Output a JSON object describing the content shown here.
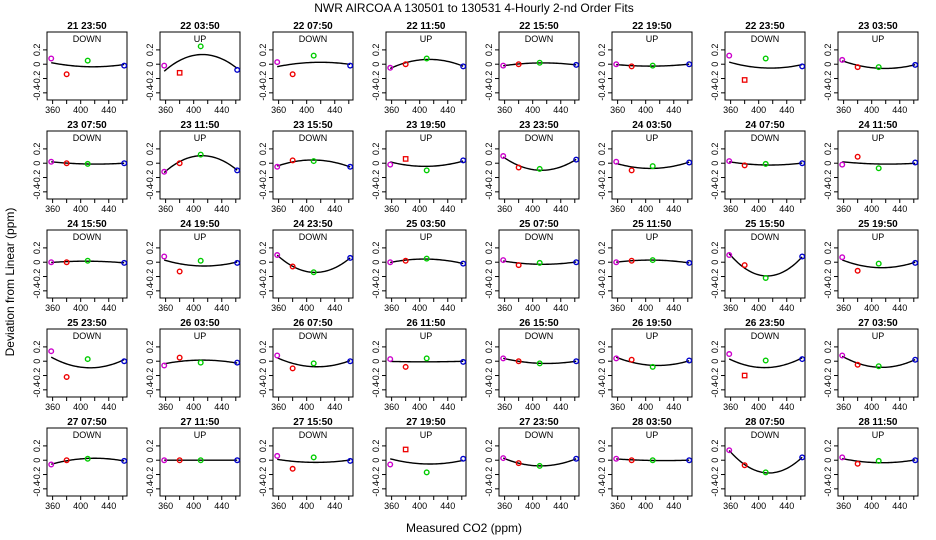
{
  "chart_data": {
    "type": "scatter",
    "title": "NWR   AIRCOA A   130501 to 130531   4-Hourly 2-nd Order Fits",
    "xlabel": "Measured CO2 (ppm)",
    "ylabel": "Deviation from Linear (ppm)",
    "xlim": [
      352,
      466
    ],
    "ylim": [
      -0.5,
      0.45
    ],
    "x_ticks": [
      360,
      400,
      440
    ],
    "x_minor_ticks": [
      380,
      420,
      460
    ],
    "y_ticks": [
      0.2,
      0,
      -0.2,
      -0.4
    ],
    "y_tick_labels": [
      "0.2",
      "0",
      "-0.2",
      "-0.4"
    ],
    "series_colors": [
      "#cc00cc",
      "#ee0000",
      "#00cc00",
      "#0000cc"
    ],
    "standard_x": [
      358,
      380,
      410,
      462
    ],
    "panels": [
      {
        "title": "21 23:50",
        "label": "DOWN",
        "y": [
          0.08,
          -0.14,
          0.05,
          -0.02
        ]
      },
      {
        "title": "22 03:50",
        "label": "UP",
        "y": [
          -0.02,
          -0.12,
          0.25,
          -0.08
        ]
      },
      {
        "title": "22 07:50",
        "label": "DOWN",
        "y": [
          0.03,
          -0.14,
          0.12,
          -0.02
        ]
      },
      {
        "title": "22 11:50",
        "label": "UP",
        "y": [
          -0.05,
          0.0,
          0.08,
          -0.03
        ]
      },
      {
        "title": "22 15:50",
        "label": "DOWN",
        "y": [
          -0.02,
          0.0,
          0.02,
          -0.01
        ]
      },
      {
        "title": "22 19:50",
        "label": "UP",
        "y": [
          0.0,
          -0.03,
          -0.02,
          0.0
        ]
      },
      {
        "title": "22 23:50",
        "label": "DOWN",
        "y": [
          0.12,
          -0.22,
          0.08,
          -0.03
        ]
      },
      {
        "title": "23 03:50",
        "label": "UP",
        "y": [
          0.06,
          -0.04,
          -0.04,
          -0.01
        ]
      },
      {
        "title": "23 07:50",
        "label": "DOWN",
        "y": [
          0.02,
          0.0,
          -0.01,
          0.0
        ]
      },
      {
        "title": "23 11:50",
        "label": "UP",
        "y": [
          -0.12,
          0.0,
          0.12,
          -0.1
        ]
      },
      {
        "title": "23 15:50",
        "label": "DOWN",
        "y": [
          -0.05,
          0.04,
          0.03,
          -0.05
        ]
      },
      {
        "title": "23 19:50",
        "label": "UP",
        "y": [
          -0.02,
          0.06,
          -0.1,
          0.04
        ]
      },
      {
        "title": "23 23:50",
        "label": "DOWN",
        "y": [
          0.1,
          -0.06,
          -0.08,
          0.05
        ]
      },
      {
        "title": "24 03:50",
        "label": "UP",
        "y": [
          0.02,
          -0.1,
          -0.04,
          0.01
        ]
      },
      {
        "title": "24 07:50",
        "label": "DOWN",
        "y": [
          0.03,
          -0.03,
          -0.01,
          0.0
        ]
      },
      {
        "title": "24 11:50",
        "label": "UP",
        "y": [
          -0.02,
          0.09,
          -0.07,
          0.01
        ]
      },
      {
        "title": "24 15:50",
        "label": "DOWN",
        "y": [
          0.0,
          0.0,
          0.02,
          -0.01
        ]
      },
      {
        "title": "24 19:50",
        "label": "UP",
        "y": [
          0.08,
          -0.13,
          0.02,
          -0.01
        ]
      },
      {
        "title": "24 23:50",
        "label": "DOWN",
        "y": [
          0.1,
          -0.06,
          -0.14,
          0.06
        ]
      },
      {
        "title": "25 03:50",
        "label": "UP",
        "y": [
          0.0,
          0.02,
          0.05,
          -0.02
        ]
      },
      {
        "title": "25 07:50",
        "label": "DOWN",
        "y": [
          0.03,
          -0.04,
          -0.01,
          0.0
        ]
      },
      {
        "title": "25 11:50",
        "label": "UP",
        "y": [
          0.0,
          0.02,
          0.03,
          -0.01
        ]
      },
      {
        "title": "25 15:50",
        "label": "DOWN",
        "y": [
          0.1,
          -0.04,
          -0.22,
          0.08
        ]
      },
      {
        "title": "25 19:50",
        "label": "UP",
        "y": [
          0.07,
          -0.12,
          -0.02,
          -0.01
        ]
      },
      {
        "title": "25 23:50",
        "label": "DOWN",
        "y": [
          0.14,
          -0.22,
          0.03,
          0.0
        ]
      },
      {
        "title": "26 03:50",
        "label": "UP",
        "y": [
          -0.06,
          0.05,
          -0.02,
          -0.02
        ]
      },
      {
        "title": "26 07:50",
        "label": "DOWN",
        "y": [
          0.08,
          -0.1,
          -0.03,
          0.0
        ]
      },
      {
        "title": "26 11:50",
        "label": "UP",
        "y": [
          0.03,
          -0.08,
          0.04,
          -0.01
        ]
      },
      {
        "title": "26 15:50",
        "label": "DOWN",
        "y": [
          0.04,
          0.0,
          -0.03,
          0.0
        ]
      },
      {
        "title": "26 19:50",
        "label": "UP",
        "y": [
          0.04,
          0.02,
          -0.08,
          0.01
        ]
      },
      {
        "title": "26 23:50",
        "label": "DOWN",
        "y": [
          0.1,
          -0.2,
          0.01,
          0.03
        ]
      },
      {
        "title": "27 03:50",
        "label": "UP",
        "y": [
          0.08,
          -0.05,
          -0.07,
          0.02
        ]
      },
      {
        "title": "27 07:50",
        "label": "DOWN",
        "y": [
          -0.06,
          0.0,
          0.02,
          -0.01
        ]
      },
      {
        "title": "27 11:50",
        "label": "UP",
        "y": [
          0.0,
          0.0,
          0.0,
          0.0
        ]
      },
      {
        "title": "27 15:50",
        "label": "DOWN",
        "y": [
          0.06,
          -0.12,
          0.04,
          -0.01
        ]
      },
      {
        "title": "27 19:50",
        "label": "UP",
        "y": [
          -0.06,
          0.15,
          -0.17,
          0.02
        ]
      },
      {
        "title": "27 23:50",
        "label": "DOWN",
        "y": [
          0.03,
          -0.04,
          -0.08,
          0.02
        ]
      },
      {
        "title": "28 03:50",
        "label": "UP",
        "y": [
          0.02,
          0.0,
          0.0,
          0.0
        ]
      },
      {
        "title": "28 07:50",
        "label": "DOWN",
        "y": [
          0.14,
          -0.07,
          -0.17,
          0.04
        ]
      },
      {
        "title": "28 11:50",
        "label": "UP",
        "y": [
          0.04,
          -0.05,
          -0.01,
          0.0
        ]
      }
    ]
  }
}
